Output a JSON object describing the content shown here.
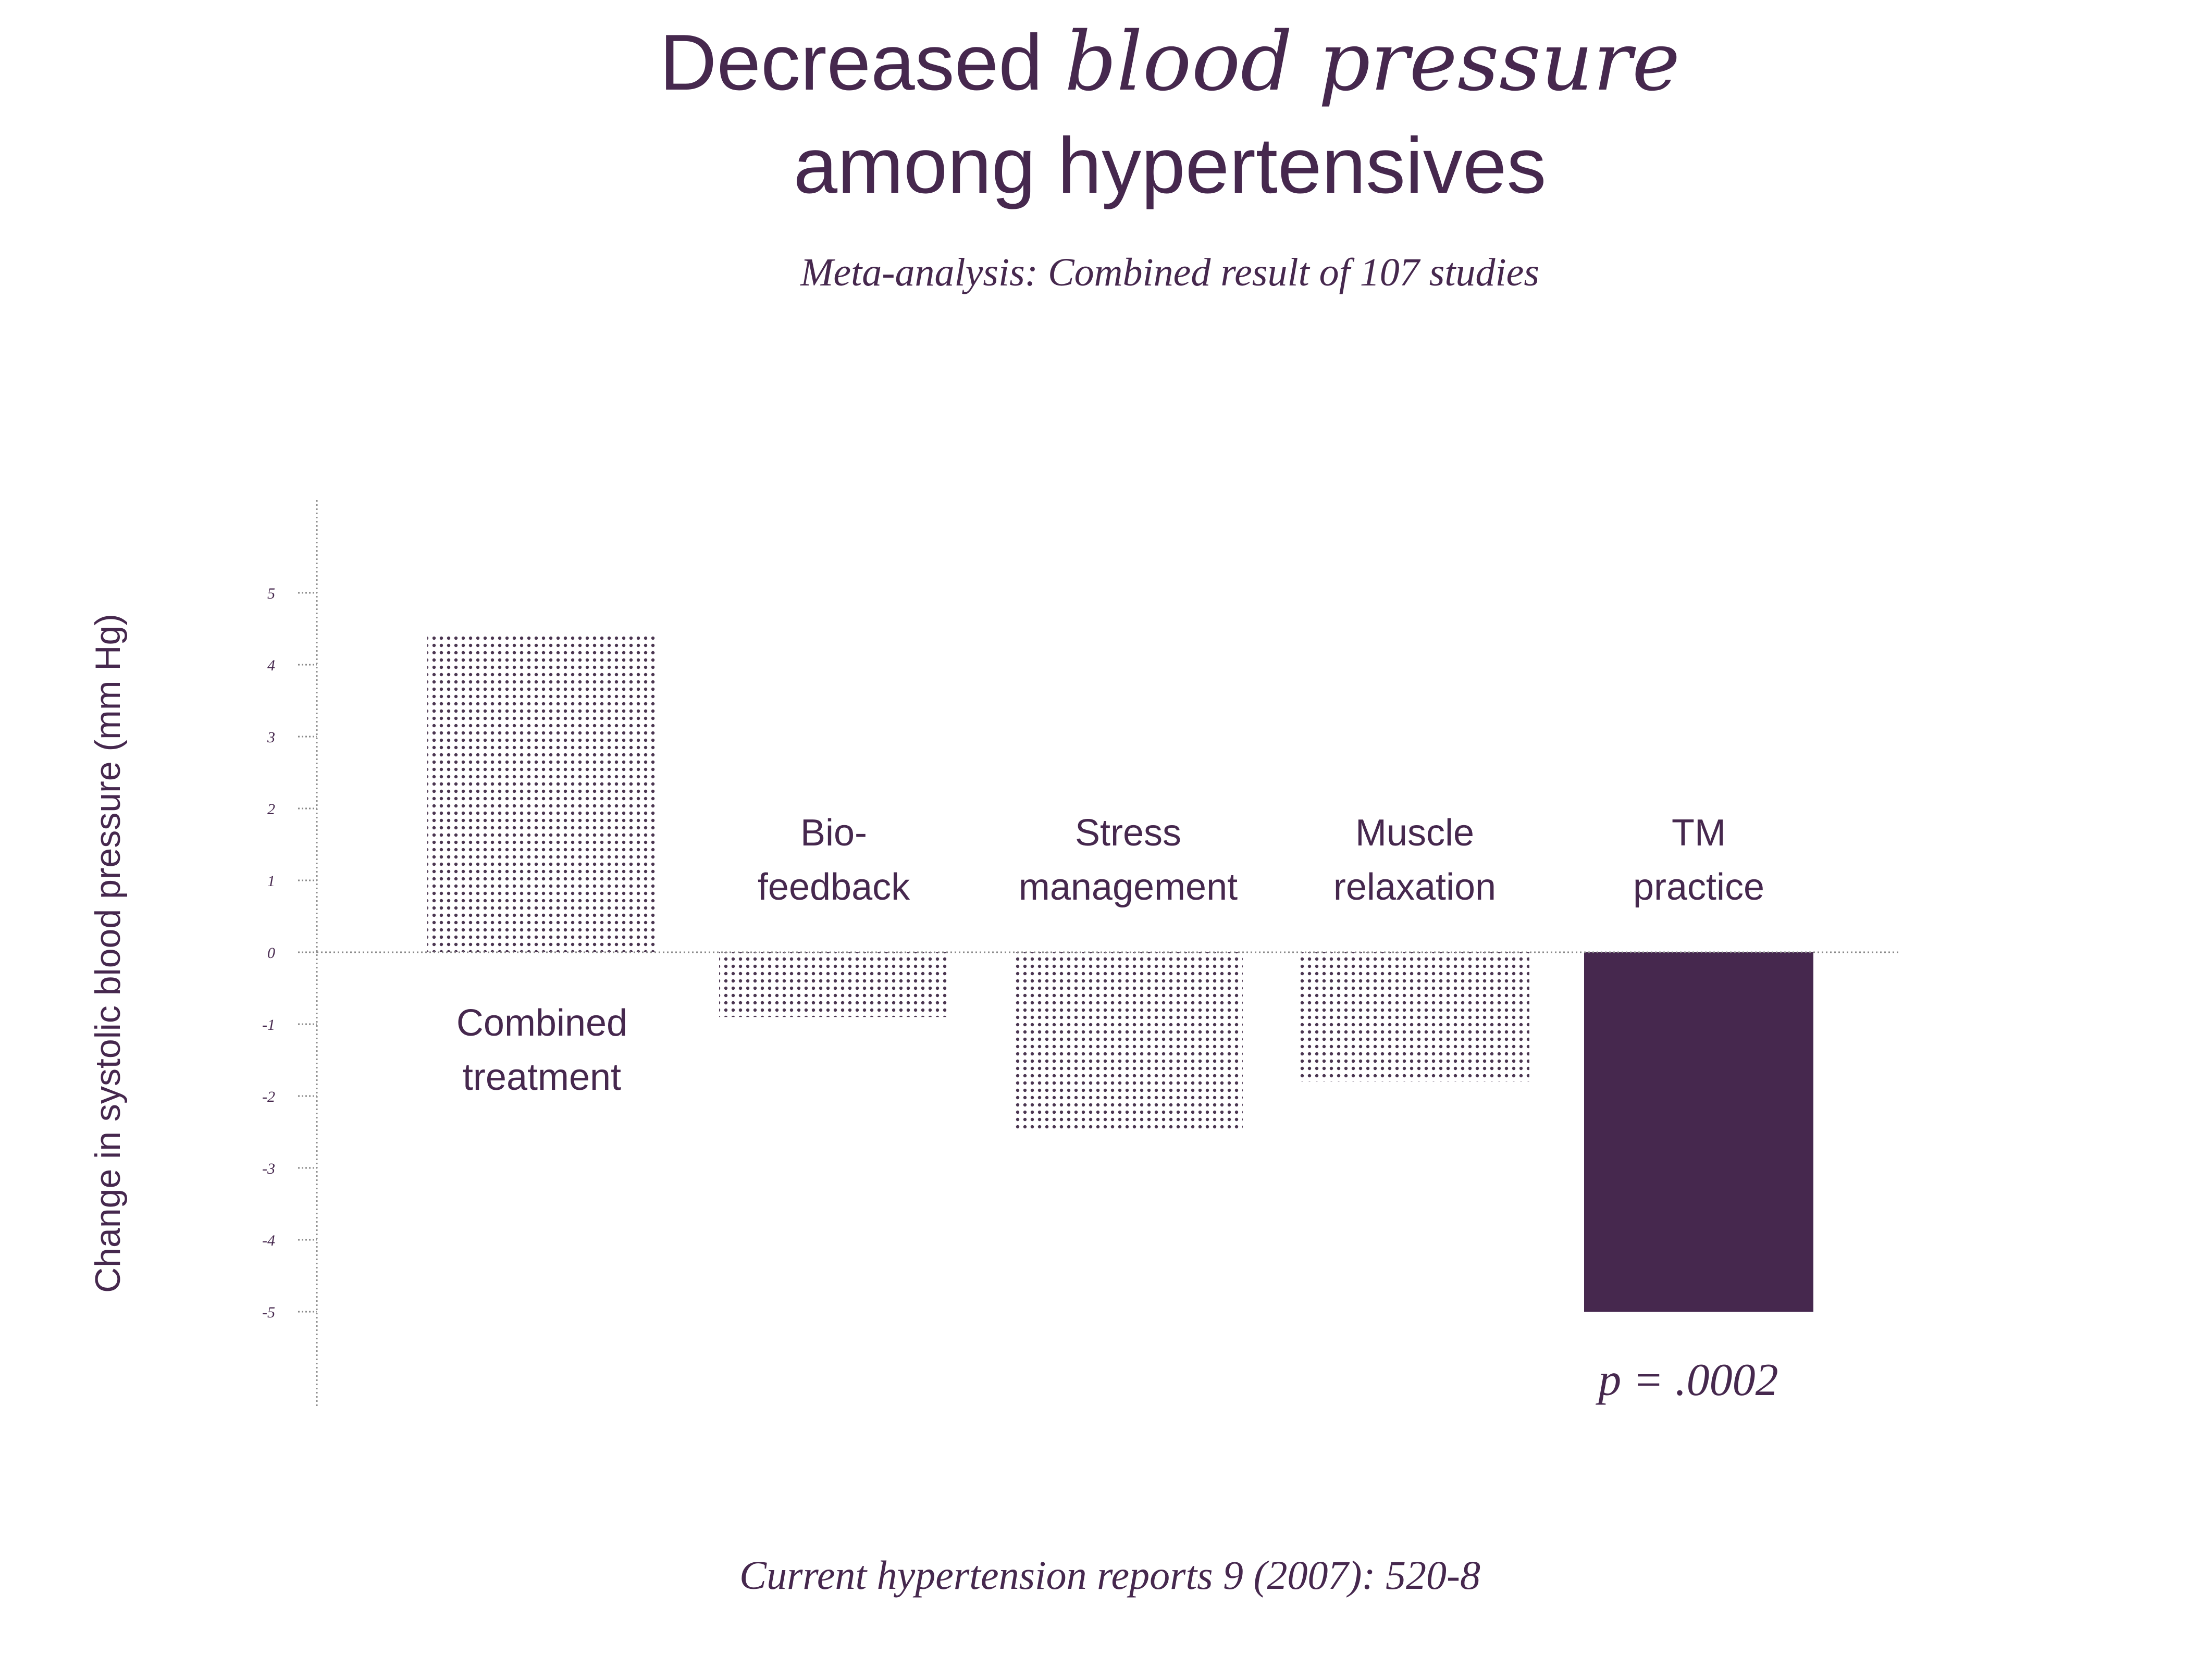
{
  "colors": {
    "accent": "#46284e",
    "dots": "#4a3550",
    "axis": "#8a8a8a"
  },
  "chart_data": {
    "type": "bar",
    "title": {
      "plain": "Decreased ",
      "italic": "blood pressure",
      "line2": "among hypertensives"
    },
    "subtitle": "Meta-analysis: Combined result of 107 studies",
    "ylabel": "Change in systolic blood pressure (mm Hg)",
    "ylim": [
      -5,
      5
    ],
    "yticks": [
      "5",
      "4",
      "3",
      "2",
      "1",
      "0",
      "-1",
      "-2",
      "-3",
      "-4",
      "-5"
    ],
    "categories": [
      [
        "Combined",
        "treatment"
      ],
      [
        "Bio-",
        "feedback"
      ],
      [
        "Stress",
        "management"
      ],
      [
        "Muscle",
        "relaxation"
      ],
      [
        "TM",
        "practice"
      ]
    ],
    "values": [
      4.4,
      -0.9,
      -2.5,
      -1.8,
      -5.0
    ],
    "highlight_index": 4,
    "annotation": "p = .0002",
    "source": "Current hypertension reports 9 (2007): 520-8"
  }
}
